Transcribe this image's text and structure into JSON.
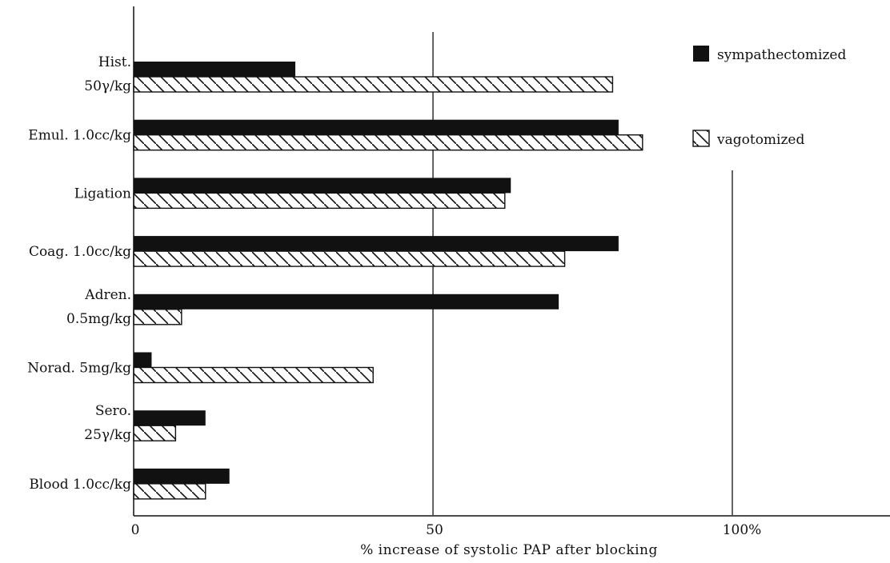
{
  "chart_data": {
    "type": "bar",
    "orientation": "horizontal",
    "categories": [
      [
        "Hist.",
        "50γ/kg"
      ],
      [
        "Emul. 1.0cc/kg"
      ],
      [
        "Ligation"
      ],
      [
        "Coag. 1.0cc/kg"
      ],
      [
        "Adren.",
        "0.5mg/kg"
      ],
      [
        "Norad. 5mg/kg"
      ],
      [
        "Sero.",
        "25γ/kg"
      ],
      [
        "Blood 1.0cc/kg"
      ]
    ],
    "series": [
      {
        "name": "sympathectomized",
        "pattern": "solid",
        "values": [
          27,
          81,
          63,
          81,
          71,
          3,
          12,
          16
        ]
      },
      {
        "name": "vagotomized",
        "pattern": "hatched",
        "values": [
          80,
          85,
          62,
          72,
          8,
          40,
          7,
          12
        ]
      }
    ],
    "xlabel": "% increase of systolic PAP after blocking",
    "ylabel": "",
    "xlim": [
      0,
      125
    ],
    "xticks": [
      {
        "value": 0,
        "label": "0"
      },
      {
        "value": 50,
        "label": "50"
      },
      {
        "value": 100,
        "label": "100%"
      }
    ],
    "reference_lines": [
      50,
      100
    ],
    "legend_position": "top-right",
    "colors": {
      "bar": "#111111",
      "background": "#ffffff"
    }
  }
}
